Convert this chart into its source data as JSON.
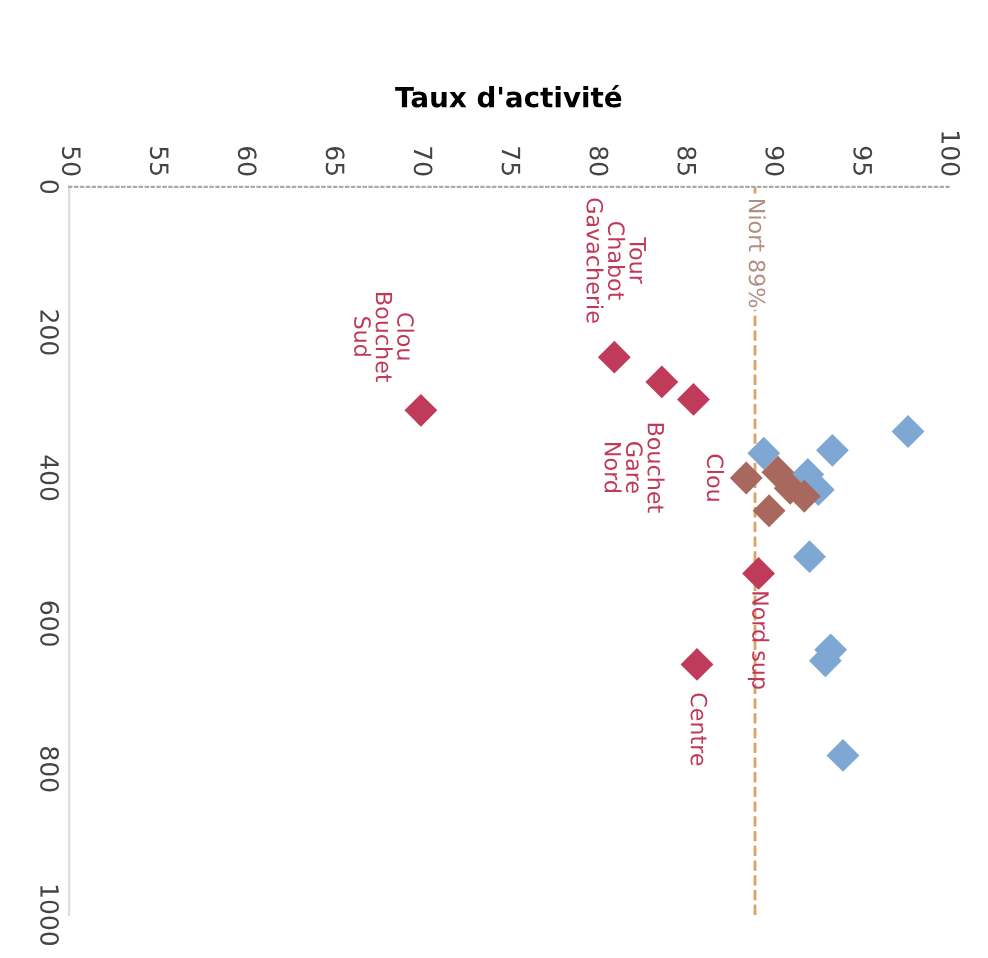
{
  "chart_data": {
    "type": "scatter",
    "xlabel": "Taux d'activité",
    "xlim": [
      50,
      100
    ],
    "ylim": [
      1000,
      0
    ],
    "xticks": [
      50,
      55,
      60,
      65,
      70,
      75,
      80,
      85,
      90,
      95,
      100
    ],
    "yticks": [
      0,
      200,
      400,
      600,
      800,
      1000
    ],
    "marker": "diamond",
    "grid": false,
    "legend": false,
    "series": [
      {
        "color": "#c03a5a",
        "x": [
          81.0,
          83.7,
          70.0,
          85.5,
          85.7,
          89.2
        ],
        "values": [
          234,
          268,
          307,
          292,
          656,
          531
        ]
      },
      {
        "color": "#7fa7d4",
        "x": [
          97.7,
          93.4,
          92.1,
          93.3,
          93.0,
          94.0,
          89.5,
          92.6,
          92.0
        ],
        "values": [
          336,
          362,
          508,
          636,
          651,
          781,
          366,
          416,
          395
        ]
      },
      {
        "color": "#a8685e",
        "x": [
          90.3,
          91.0,
          91.8,
          89.8,
          88.5
        ],
        "values": [
          392,
          414,
          425,
          445,
          400
        ]
      }
    ],
    "ref_lines": [
      {
        "axis": "x",
        "value": 89,
        "label": "Niort 89%",
        "color": "#e0a060",
        "line_style": "dashed"
      }
    ],
    "annotations": [
      {
        "text": "Tour\nChabot\nGavacherie",
        "x": 81.0,
        "y": 234
      },
      {
        "text": "Clou\nBouchet\nSud",
        "x": 70.0,
        "y": 307
      },
      {
        "text": "Bouchet\nGare\nNord",
        "x": 85.5,
        "y": 292
      },
      {
        "text": "Clou",
        "x": 88.5,
        "y": 400
      },
      {
        "text": "Nord sup",
        "x": 89.2,
        "y": 531
      },
      {
        "text": "Centre",
        "x": 85.7,
        "y": 656
      }
    ]
  }
}
